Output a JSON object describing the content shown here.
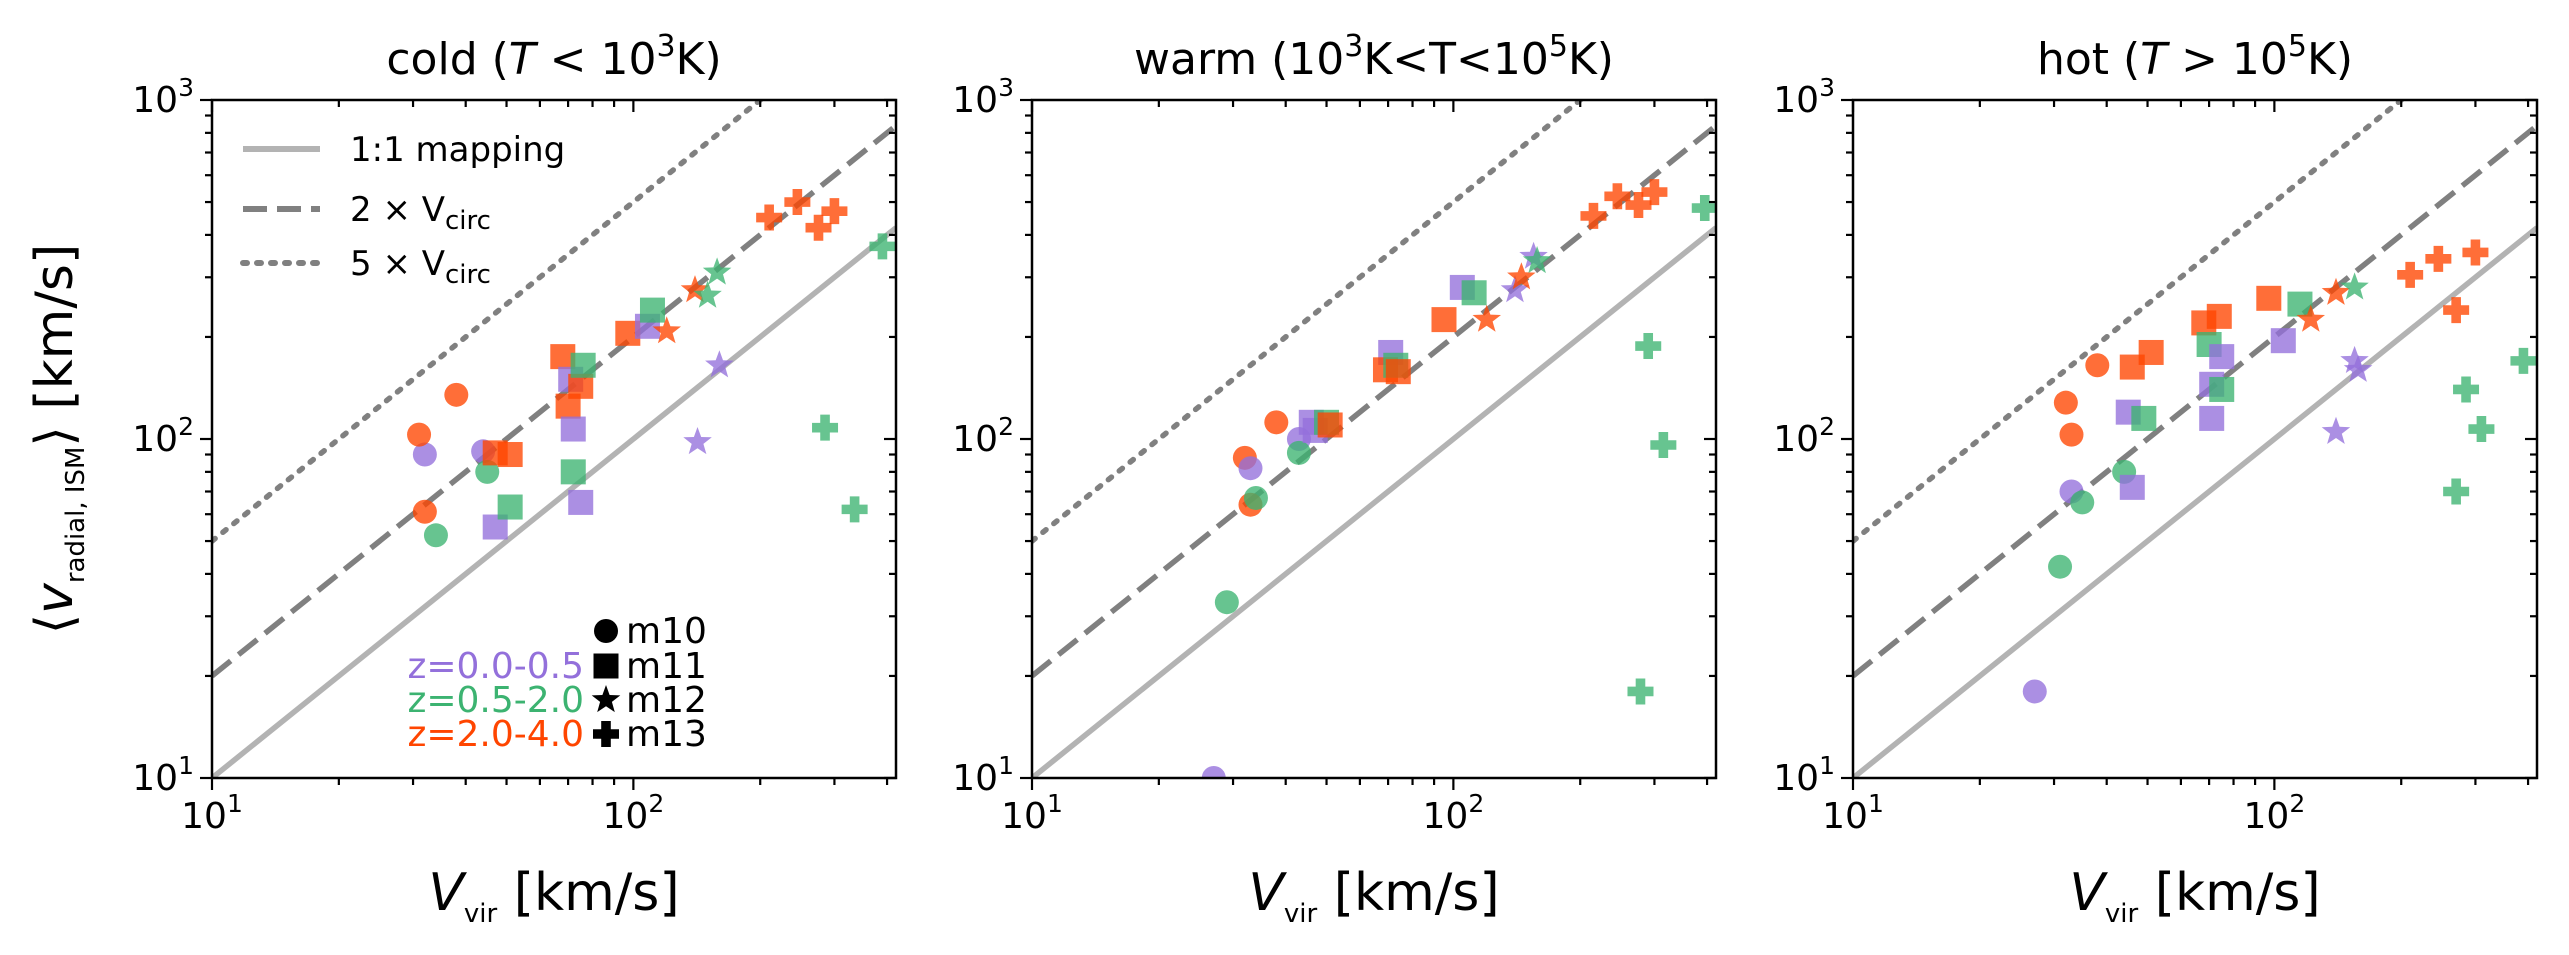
{
  "chart_data": {
    "type": "scatter",
    "log_x": true,
    "log_y": true,
    "xlim": [
      10,
      420
    ],
    "ylim": [
      10,
      1000
    ],
    "ylabel": {
      "open": "⟨",
      "base": "v",
      "sub": "radial, ISM",
      "close": "⟩ [km/s]"
    },
    "colors": {
      "z0": "#9370db",
      "z1": "#3cb371",
      "z2": "#ff4500",
      "one_to_one": "#b3b3b3",
      "circ": "#808080"
    },
    "x_tick_labels": [
      "10",
      "10"
    ],
    "x_tick_exps": [
      "1",
      "2"
    ],
    "y_tick_labels": [
      "10",
      "10",
      "10"
    ],
    "y_tick_exps": [
      "1",
      "2",
      "3"
    ],
    "line_legend": [
      {
        "label": "1:1 mapping",
        "style": "solid"
      },
      {
        "label_base": "2 × V",
        "label_sub": "circ",
        "style": "dashed"
      },
      {
        "label_base": "5 × V",
        "label_sub": "circ",
        "style": "dotted"
      }
    ],
    "redshift_legend": [
      {
        "label": "z=0.0-0.5",
        "color_key": "z0"
      },
      {
        "label": "z=0.5-2.0",
        "color_key": "z1"
      },
      {
        "label": "z=2.0-4.0",
        "color_key": "z2"
      }
    ],
    "marker_legend": [
      {
        "marker": "circle",
        "label": "m10"
      },
      {
        "marker": "square",
        "label": "m11"
      },
      {
        "marker": "star",
        "label": "m12"
      },
      {
        "marker": "plus",
        "label": "m13"
      }
    ],
    "panels": [
      {
        "title": {
          "pre": "cold (",
          "it": "T",
          "mid": " < 10",
          "sup": "3",
          "post": "K)"
        },
        "xlabel": {
          "base": "V",
          "sub": "vir",
          "post": " [km/s]"
        },
        "points": [
          {
            "x": 32,
            "y": 90,
            "m": "circle",
            "z": "z0"
          },
          {
            "x": 31,
            "y": 103,
            "m": "circle",
            "z": "z2"
          },
          {
            "x": 32,
            "y": 61,
            "m": "circle",
            "z": "z2"
          },
          {
            "x": 38,
            "y": 135,
            "m": "circle",
            "z": "z2"
          },
          {
            "x": 34,
            "y": 52,
            "m": "circle",
            "z": "z1"
          },
          {
            "x": 44,
            "y": 92,
            "m": "circle",
            "z": "z0"
          },
          {
            "x": 45,
            "y": 80,
            "m": "circle",
            "z": "z1"
          },
          {
            "x": 47,
            "y": 55,
            "m": "square",
            "z": "z0"
          },
          {
            "x": 47,
            "y": 91,
            "m": "square",
            "z": "z2"
          },
          {
            "x": 51,
            "y": 90,
            "m": "square",
            "z": "z2"
          },
          {
            "x": 51,
            "y": 63,
            "m": "square",
            "z": "z1"
          },
          {
            "x": 68,
            "y": 175,
            "m": "square",
            "z": "z2"
          },
          {
            "x": 70,
            "y": 125,
            "m": "square",
            "z": "z2"
          },
          {
            "x": 71,
            "y": 150,
            "m": "square",
            "z": "z0"
          },
          {
            "x": 72,
            "y": 107,
            "m": "square",
            "z": "z0"
          },
          {
            "x": 72,
            "y": 80,
            "m": "square",
            "z": "z1"
          },
          {
            "x": 75,
            "y": 143,
            "m": "square",
            "z": "z2"
          },
          {
            "x": 76,
            "y": 165,
            "m": "square",
            "z": "z1"
          },
          {
            "x": 75,
            "y": 65,
            "m": "square",
            "z": "z0"
          },
          {
            "x": 97,
            "y": 205,
            "m": "square",
            "z": "z2"
          },
          {
            "x": 108,
            "y": 215,
            "m": "square",
            "z": "z0"
          },
          {
            "x": 111,
            "y": 240,
            "m": "square",
            "z": "z1"
          },
          {
            "x": 120,
            "y": 208,
            "m": "star",
            "z": "z2"
          },
          {
            "x": 140,
            "y": 275,
            "m": "star",
            "z": "z2"
          },
          {
            "x": 150,
            "y": 265,
            "m": "star",
            "z": "z1"
          },
          {
            "x": 158,
            "y": 310,
            "m": "star",
            "z": "z1"
          },
          {
            "x": 142,
            "y": 98,
            "m": "star",
            "z": "z0"
          },
          {
            "x": 160,
            "y": 165,
            "m": "star",
            "z": "z0"
          },
          {
            "x": 210,
            "y": 450,
            "m": "plus",
            "z": "z2"
          },
          {
            "x": 245,
            "y": 500,
            "m": "plus",
            "z": "z2"
          },
          {
            "x": 275,
            "y": 420,
            "m": "plus",
            "z": "z2"
          },
          {
            "x": 300,
            "y": 470,
            "m": "plus",
            "z": "z2"
          },
          {
            "x": 390,
            "y": 370,
            "m": "plus",
            "z": "z1"
          },
          {
            "x": 285,
            "y": 108,
            "m": "plus",
            "z": "z1"
          },
          {
            "x": 335,
            "y": 62,
            "m": "plus",
            "z": "z1"
          }
        ]
      },
      {
        "title": {
          "pre": "warm (10",
          "sup": "3",
          "mid": "K<T<10",
          "sup2": "5",
          "post": "K)"
        },
        "xlabel": {
          "base": "V",
          "sub": "vir",
          "post": " [km/s]"
        },
        "points": [
          {
            "x": 27,
            "y": 10,
            "m": "circle",
            "z": "z0"
          },
          {
            "x": 29,
            "y": 33,
            "m": "circle",
            "z": "z1"
          },
          {
            "x": 32,
            "y": 88,
            "m": "circle",
            "z": "z2"
          },
          {
            "x": 33,
            "y": 64,
            "m": "circle",
            "z": "z2"
          },
          {
            "x": 33,
            "y": 82,
            "m": "circle",
            "z": "z0"
          },
          {
            "x": 34,
            "y": 67,
            "m": "circle",
            "z": "z1"
          },
          {
            "x": 38,
            "y": 112,
            "m": "circle",
            "z": "z2"
          },
          {
            "x": 43,
            "y": 100,
            "m": "circle",
            "z": "z0"
          },
          {
            "x": 43,
            "y": 91,
            "m": "circle",
            "z": "z1"
          },
          {
            "x": 46,
            "y": 112,
            "m": "square",
            "z": "z0"
          },
          {
            "x": 47,
            "y": 106,
            "m": "square",
            "z": "z0"
          },
          {
            "x": 50,
            "y": 112,
            "m": "square",
            "z": "z1"
          },
          {
            "x": 51,
            "y": 110,
            "m": "square",
            "z": "z2"
          },
          {
            "x": 71,
            "y": 180,
            "m": "square",
            "z": "z0"
          },
          {
            "x": 69,
            "y": 160,
            "m": "square",
            "z": "z2"
          },
          {
            "x": 73,
            "y": 165,
            "m": "square",
            "z": "z1"
          },
          {
            "x": 74,
            "y": 158,
            "m": "square",
            "z": "z2"
          },
          {
            "x": 95,
            "y": 225,
            "m": "square",
            "z": "z2"
          },
          {
            "x": 105,
            "y": 280,
            "m": "square",
            "z": "z0"
          },
          {
            "x": 112,
            "y": 270,
            "m": "square",
            "z": "z1"
          },
          {
            "x": 120,
            "y": 225,
            "m": "star",
            "z": "z2"
          },
          {
            "x": 140,
            "y": 275,
            "m": "star",
            "z": "z0"
          },
          {
            "x": 145,
            "y": 300,
            "m": "star",
            "z": "z2"
          },
          {
            "x": 155,
            "y": 345,
            "m": "star",
            "z": "z0"
          },
          {
            "x": 158,
            "y": 335,
            "m": "star",
            "z": "z1"
          },
          {
            "x": 215,
            "y": 455,
            "m": "plus",
            "z": "z2"
          },
          {
            "x": 245,
            "y": 520,
            "m": "plus",
            "z": "z2"
          },
          {
            "x": 275,
            "y": 490,
            "m": "plus",
            "z": "z2"
          },
          {
            "x": 300,
            "y": 535,
            "m": "plus",
            "z": "z2"
          },
          {
            "x": 395,
            "y": 480,
            "m": "plus",
            "z": "z1"
          },
          {
            "x": 290,
            "y": 188,
            "m": "plus",
            "z": "z1"
          },
          {
            "x": 315,
            "y": 96,
            "m": "plus",
            "z": "z1"
          },
          {
            "x": 278,
            "y": 18,
            "m": "plus",
            "z": "z1"
          }
        ]
      },
      {
        "title": {
          "pre": "hot (",
          "it": "T",
          "mid": " > 10",
          "sup": "5",
          "post": "K)"
        },
        "xlabel": {
          "base": "V",
          "sub": "vir",
          "post": " [km/s]"
        },
        "points": [
          {
            "x": 27,
            "y": 18,
            "m": "circle",
            "z": "z0"
          },
          {
            "x": 31,
            "y": 42,
            "m": "circle",
            "z": "z1"
          },
          {
            "x": 32,
            "y": 128,
            "m": "circle",
            "z": "z2"
          },
          {
            "x": 33,
            "y": 103,
            "m": "circle",
            "z": "z2"
          },
          {
            "x": 33,
            "y": 70,
            "m": "circle",
            "z": "z0"
          },
          {
            "x": 35,
            "y": 65,
            "m": "circle",
            "z": "z1"
          },
          {
            "x": 38,
            "y": 165,
            "m": "circle",
            "z": "z2"
          },
          {
            "x": 44,
            "y": 80,
            "m": "circle",
            "z": "z1"
          },
          {
            "x": 45,
            "y": 120,
            "m": "square",
            "z": "z0"
          },
          {
            "x": 46,
            "y": 163,
            "m": "square",
            "z": "z2"
          },
          {
            "x": 46,
            "y": 72,
            "m": "square",
            "z": "z0"
          },
          {
            "x": 49,
            "y": 115,
            "m": "square",
            "z": "z1"
          },
          {
            "x": 51,
            "y": 180,
            "m": "square",
            "z": "z2"
          },
          {
            "x": 68,
            "y": 220,
            "m": "square",
            "z": "z2"
          },
          {
            "x": 70,
            "y": 190,
            "m": "square",
            "z": "z1"
          },
          {
            "x": 71,
            "y": 145,
            "m": "square",
            "z": "z0"
          },
          {
            "x": 71,
            "y": 115,
            "m": "square",
            "z": "z0"
          },
          {
            "x": 74,
            "y": 230,
            "m": "square",
            "z": "z2"
          },
          {
            "x": 75,
            "y": 175,
            "m": "square",
            "z": "z0"
          },
          {
            "x": 75,
            "y": 140,
            "m": "square",
            "z": "z1"
          },
          {
            "x": 97,
            "y": 260,
            "m": "square",
            "z": "z2"
          },
          {
            "x": 105,
            "y": 195,
            "m": "square",
            "z": "z0"
          },
          {
            "x": 115,
            "y": 250,
            "m": "square",
            "z": "z1"
          },
          {
            "x": 122,
            "y": 225,
            "m": "star",
            "z": "z2"
          },
          {
            "x": 140,
            "y": 270,
            "m": "star",
            "z": "z2"
          },
          {
            "x": 155,
            "y": 280,
            "m": "star",
            "z": "z1"
          },
          {
            "x": 140,
            "y": 105,
            "m": "star",
            "z": "z0"
          },
          {
            "x": 155,
            "y": 170,
            "m": "star",
            "z": "z0"
          },
          {
            "x": 158,
            "y": 160,
            "m": "star",
            "z": "z0"
          },
          {
            "x": 210,
            "y": 305,
            "m": "plus",
            "z": "z2"
          },
          {
            "x": 245,
            "y": 340,
            "m": "plus",
            "z": "z2"
          },
          {
            "x": 300,
            "y": 355,
            "m": "plus",
            "z": "z2"
          },
          {
            "x": 270,
            "y": 240,
            "m": "plus",
            "z": "z2"
          },
          {
            "x": 285,
            "y": 140,
            "m": "plus",
            "z": "z1"
          },
          {
            "x": 310,
            "y": 107,
            "m": "plus",
            "z": "z1"
          },
          {
            "x": 270,
            "y": 70,
            "m": "plus",
            "z": "z1"
          },
          {
            "x": 390,
            "y": 170,
            "m": "plus",
            "z": "z1"
          }
        ]
      }
    ]
  }
}
